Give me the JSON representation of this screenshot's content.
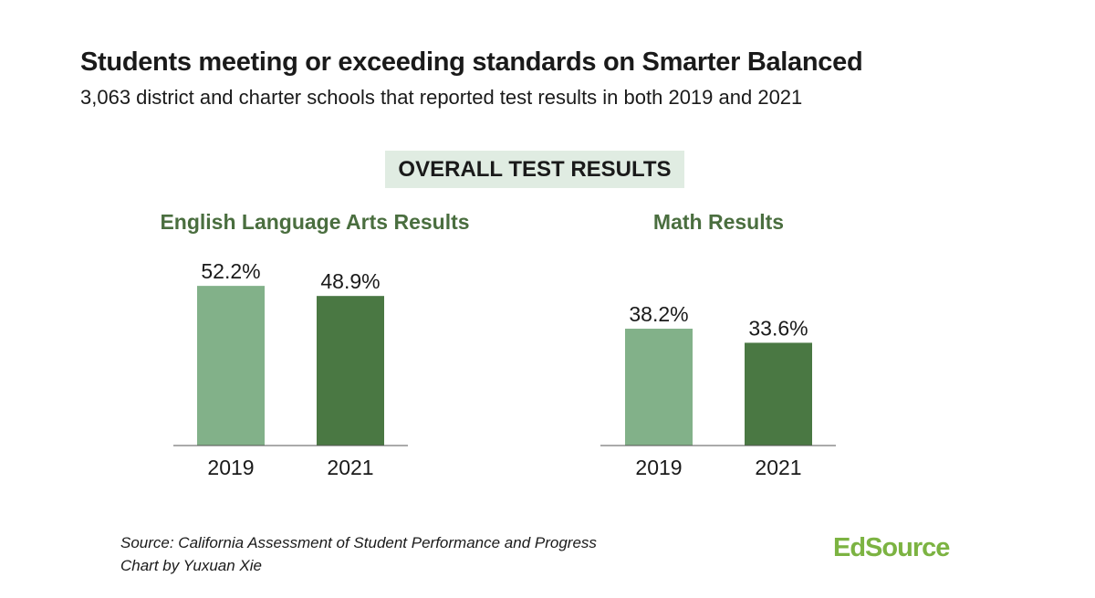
{
  "title": "Students meeting or exceeding standards on Smarter Balanced",
  "subtitle": "3,063 district and charter schools that reported test results in both 2019 and 2021",
  "banner": "OVERALL TEST RESULTS",
  "source": "Source: California Assessment of Student Performance and Progress",
  "credit": "Chart by Yuxuan Xie",
  "logo": "EdSource",
  "colors": {
    "2019": "#82b189",
    "2021": "#4a7843",
    "subtitle": "#4a6e3f",
    "banner_bg": "#e0ece2"
  },
  "chart_data": [
    {
      "type": "bar",
      "title": "English Language Arts Results",
      "categories": [
        "2019",
        "2021"
      ],
      "values": [
        52.2,
        48.9
      ],
      "labels": [
        "52.2%",
        "48.9%"
      ],
      "ylim": [
        0,
        100
      ]
    },
    {
      "type": "bar",
      "title": "Math Results",
      "categories": [
        "2019",
        "2021"
      ],
      "values": [
        38.2,
        33.6
      ],
      "labels": [
        "38.2%",
        "33.6%"
      ],
      "ylim": [
        0,
        100
      ]
    }
  ]
}
